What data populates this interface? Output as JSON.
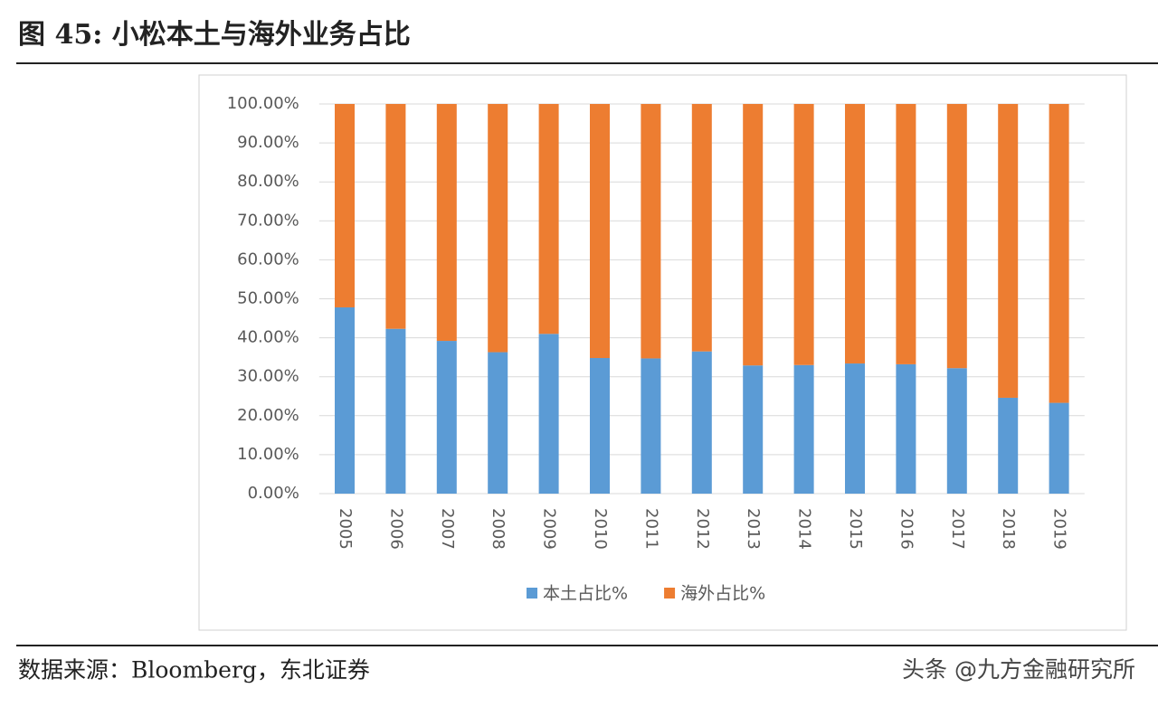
{
  "header": {
    "title": "图 45: 小松本土与海外业务占比"
  },
  "chart_data": {
    "type": "stacked_bar",
    "categories": [
      "2005",
      "2006",
      "2007",
      "2008",
      "2009",
      "2010",
      "2011",
      "2012",
      "2013",
      "2014",
      "2015",
      "2016",
      "2017",
      "2018",
      "2019"
    ],
    "series": [
      {
        "name": "本土占比%",
        "color": "#5b9bd5",
        "values": [
          47.8,
          42.3,
          39.2,
          36.3,
          41.0,
          34.8,
          34.7,
          36.5,
          32.9,
          33.0,
          33.4,
          33.2,
          32.2,
          24.6,
          23.3
        ]
      },
      {
        "name": "海外占比%",
        "color": "#ed7d31",
        "values": [
          52.2,
          57.7,
          60.8,
          63.7,
          59.0,
          65.2,
          65.3,
          63.5,
          67.1,
          67.0,
          66.6,
          66.8,
          67.8,
          75.4,
          76.7
        ]
      }
    ],
    "ylim": [
      0,
      100
    ],
    "yticks": [
      {
        "value": 0,
        "label": "0.00%"
      },
      {
        "value": 10,
        "label": "10.00%"
      },
      {
        "value": 20,
        "label": "20.00%"
      },
      {
        "value": 30,
        "label": "30.00%"
      },
      {
        "value": 40,
        "label": "40.00%"
      },
      {
        "value": 50,
        "label": "50.00%"
      },
      {
        "value": 60,
        "label": "60.00%"
      },
      {
        "value": 70,
        "label": "70.00%"
      },
      {
        "value": 80,
        "label": "80.00%"
      },
      {
        "value": 90,
        "label": "90.00%"
      },
      {
        "value": 100,
        "label": "100.00%"
      }
    ],
    "grid": true,
    "legend": "bottom"
  },
  "footer": {
    "source": "数据来源：Bloomberg，东北证券",
    "watermark": "头条 @九方金融研究所"
  }
}
